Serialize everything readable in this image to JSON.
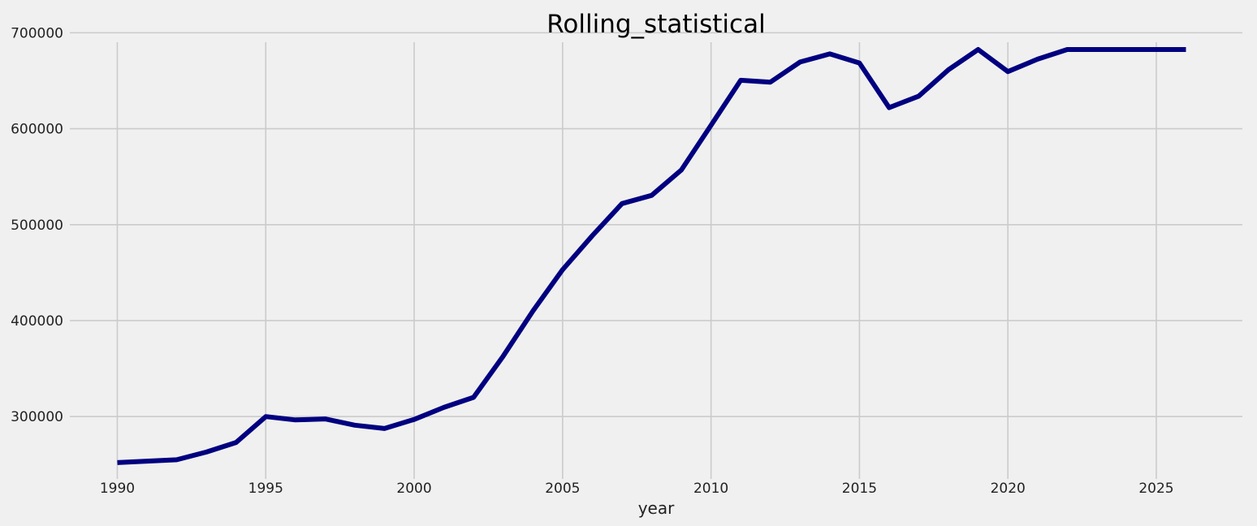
{
  "chart_data": {
    "type": "line",
    "title": "Rolling_statistical",
    "xlabel": "year",
    "ylabel": "",
    "xlim": [
      1988.4,
      2027.9
    ],
    "ylim": [
      235000,
      702000
    ],
    "x_ticks": [
      1990,
      1995,
      2000,
      2005,
      2010,
      2015,
      2020,
      2025
    ],
    "y_ticks": [
      300000,
      400000,
      500000,
      600000,
      700000
    ],
    "grid": true,
    "line_color": "#000080",
    "series": [
      {
        "x": [
          1990,
          1991,
          1992,
          1993,
          1994,
          1995,
          1996,
          1997,
          1998,
          1999,
          2000,
          2001,
          2002,
          2003,
          2004,
          2005,
          2006,
          2007,
          2008,
          2009,
          2010,
          2011,
          2012,
          2013,
          2014,
          2015,
          2016,
          2017,
          2018,
          2019,
          2020,
          2021,
          2022,
          2023,
          2024,
          2025,
          2026
        ],
        "values": [
          252000,
          253500,
          255000,
          263000,
          273000,
          300000,
          296500,
          297500,
          291000,
          287500,
          297000,
          309500,
          320000,
          363000,
          410000,
          453000,
          488500,
          522000,
          530500,
          557000,
          603500,
          650500,
          648500,
          669500,
          678000,
          668500,
          622000,
          634000,
          661500,
          682500,
          659500,
          672500,
          682500,
          682500,
          682500,
          682500,
          682500
        ]
      }
    ]
  }
}
